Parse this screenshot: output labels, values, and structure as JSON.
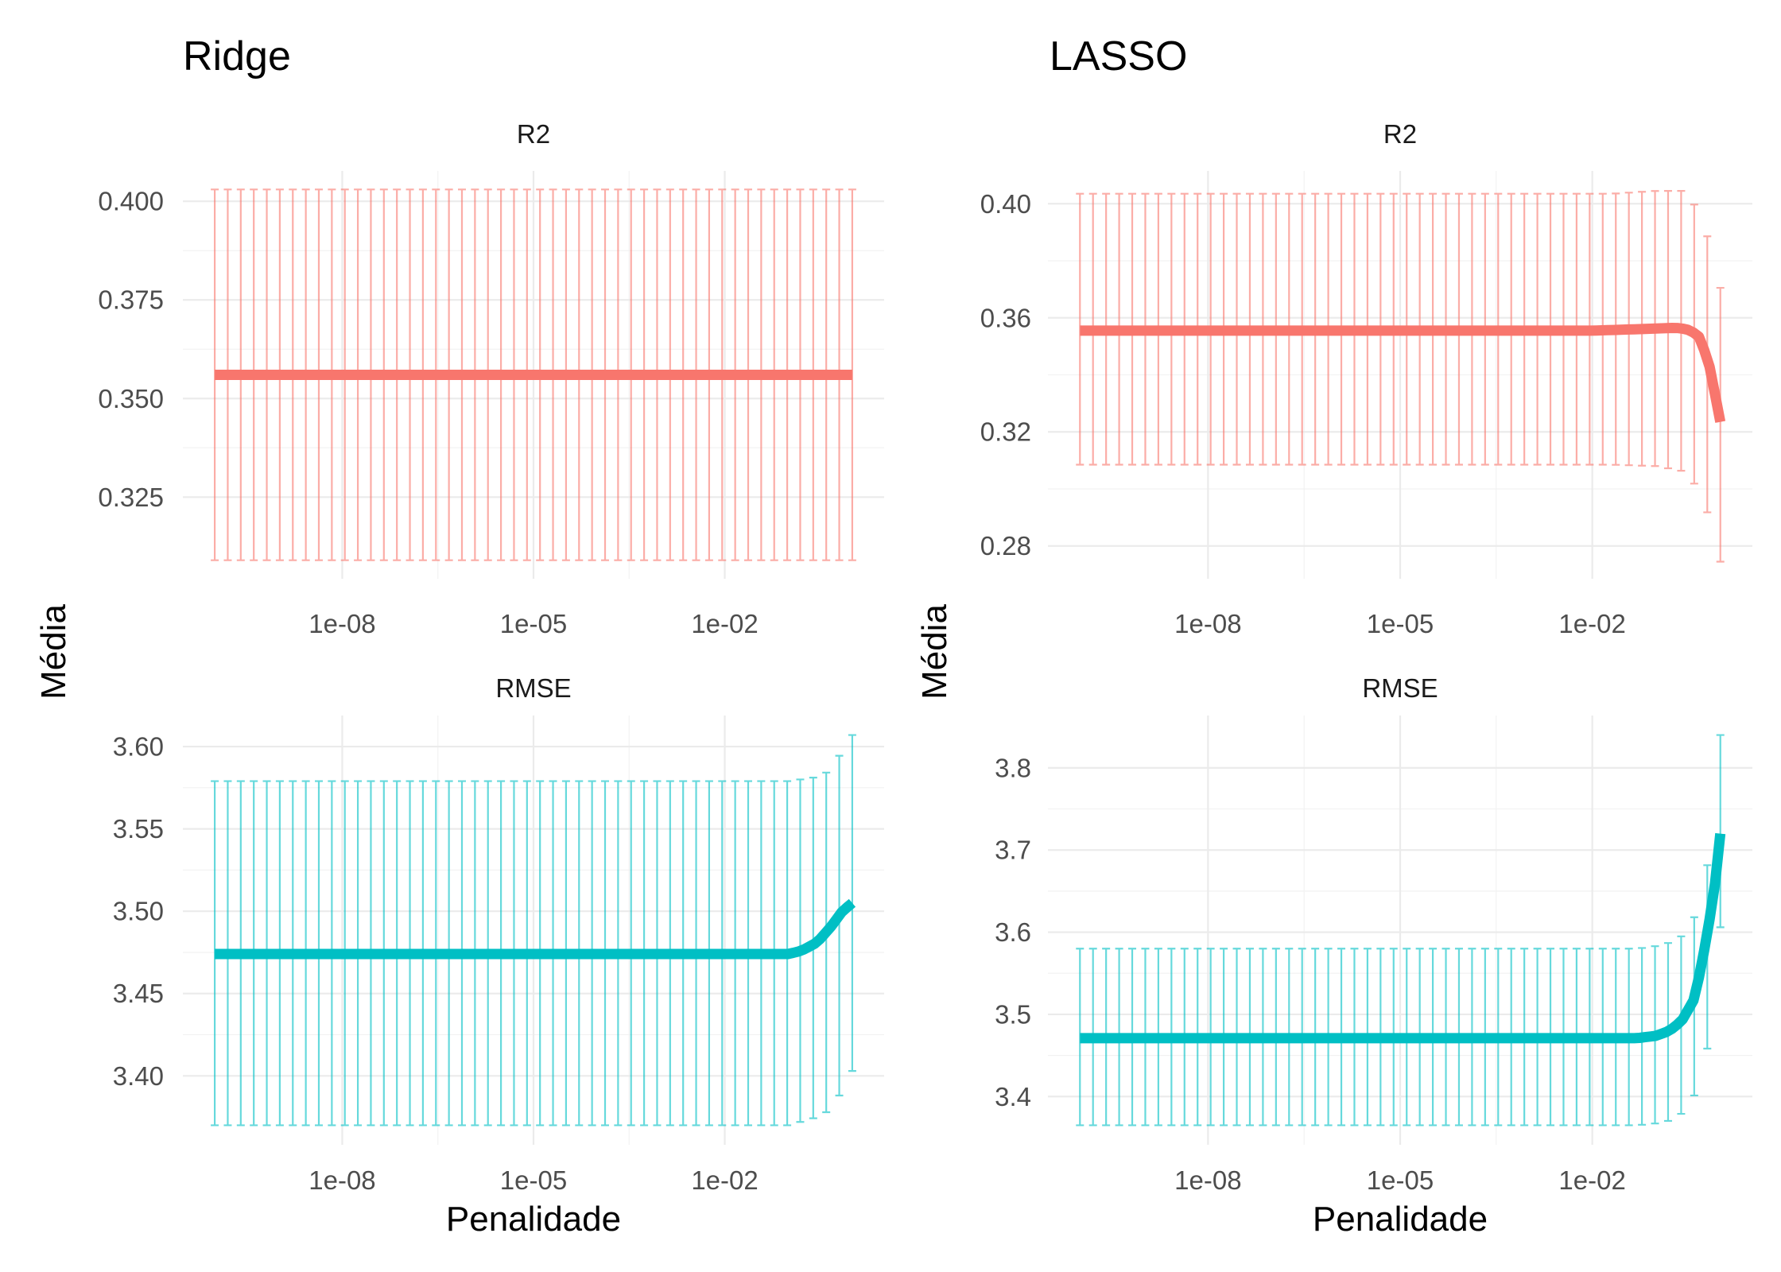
{
  "chart_data": [
    {
      "type": "line",
      "title": "Ridge",
      "facet": "R2",
      "xlabel": "",
      "ylabel": "Média",
      "x_scale": "log10",
      "xlim": [
        1e-10,
        1
      ],
      "x_ticks": [
        "1e-08",
        "1e-05",
        "1e-02"
      ],
      "ylim": [
        0.309,
        0.403
      ],
      "y_ticks": [
        "0.325",
        "0.350",
        "0.375",
        "0.400"
      ],
      "color": "#F8766D",
      "series": [
        {
          "points": [
            [
              1e-10,
              0.356
            ],
            [
              1e-05,
              0.356
            ],
            [
              1,
              0.356
            ]
          ],
          "error_low": 0.309,
          "error_high": 0.403
        }
      ],
      "grid": true
    },
    {
      "type": "line",
      "title": "Ridge",
      "facet": "RMSE",
      "xlabel": "Penalidade",
      "ylabel": "Média",
      "x_scale": "log10",
      "xlim": [
        1e-10,
        1
      ],
      "x_ticks": [
        "1e-08",
        "1e-05",
        "1e-02"
      ],
      "ylim": [
        3.37,
        3.607
      ],
      "y_ticks": [
        "3.40",
        "3.45",
        "3.50",
        "3.55",
        "3.60"
      ],
      "color": "#00BFC4",
      "series": [
        {
          "points": [
            [
              1e-10,
              3.474
            ],
            [
              0.1,
              3.474
            ],
            [
              0.16,
              3.476
            ],
            [
              0.28,
              3.481
            ],
            [
              0.45,
              3.49
            ],
            [
              0.7,
              3.5
            ],
            [
              1,
              3.505
            ]
          ],
          "error_low_by_x": [
            [
              1e-10,
              3.37
            ],
            [
              0.1,
              3.37
            ],
            [
              0.35,
              3.376
            ],
            [
              0.55,
              3.384
            ],
            [
              1,
              3.403
            ]
          ],
          "error_high_by_x": [
            [
              1e-10,
              3.579
            ],
            [
              0.1,
              3.579
            ],
            [
              0.35,
              3.582
            ],
            [
              0.55,
              3.591
            ],
            [
              1,
              3.607
            ]
          ]
        }
      ],
      "grid": true
    },
    {
      "type": "line",
      "title": "LASSO",
      "facet": "R2",
      "xlabel": "",
      "ylabel": "Média",
      "x_scale": "log10",
      "xlim": [
        1e-10,
        1
      ],
      "x_ticks": [
        "1e-08",
        "1e-05",
        "1e-02"
      ],
      "ylim": [
        0.275,
        0.405
      ],
      "y_ticks": [
        "0.28",
        "0.32",
        "0.36",
        "0.40"
      ],
      "color": "#F8766D",
      "series": [
        {
          "points": [
            [
              1e-10,
              0.3555
            ],
            [
              0.01,
              0.3555
            ],
            [
              0.05,
              0.356
            ],
            [
              0.2,
              0.3565
            ],
            [
              0.3,
              0.356
            ],
            [
              0.45,
              0.354
            ],
            [
              0.65,
              0.345
            ],
            [
              1,
              0.3235
            ]
          ],
          "error_low_by_x": [
            [
              1e-10,
              0.3085
            ],
            [
              0.02,
              0.3085
            ],
            [
              0.1,
              0.308
            ],
            [
              0.3,
              0.306
            ],
            [
              0.55,
              0.2965
            ],
            [
              1,
              0.2745
            ]
          ],
          "error_high_by_x": [
            [
              1e-10,
              0.4035
            ],
            [
              0.02,
              0.4035
            ],
            [
              0.1,
              0.4045
            ],
            [
              0.3,
              0.4045
            ],
            [
              0.55,
              0.3935
            ],
            [
              1,
              0.3705
            ]
          ]
        }
      ],
      "grid": true
    },
    {
      "type": "line",
      "title": "LASSO",
      "facet": "RMSE",
      "xlabel": "Penalidade",
      "ylabel": "Média",
      "x_scale": "log10",
      "xlim": [
        1e-10,
        1
      ],
      "x_ticks": [
        "1e-08",
        "1e-05",
        "1e-02"
      ],
      "ylim": [
        3.365,
        3.84
      ],
      "y_ticks": [
        "3.4",
        "3.5",
        "3.6",
        "3.7",
        "3.8"
      ],
      "color": "#00BFC4",
      "series": [
        {
          "points": [
            [
              1e-10,
              3.471
            ],
            [
              0.05,
              3.471
            ],
            [
              0.1,
              3.474
            ],
            [
              0.16,
              3.48
            ],
            [
              0.25,
              3.492
            ],
            [
              0.4,
              3.52
            ],
            [
              0.6,
              3.59
            ],
            [
              0.8,
              3.65
            ],
            [
              1,
              3.72
            ]
          ],
          "error_low_by_x": [
            [
              1e-10,
              3.365
            ],
            [
              0.05,
              3.365
            ],
            [
              0.12,
              3.368
            ],
            [
              0.2,
              3.373
            ],
            [
              0.3,
              3.385
            ],
            [
              0.45,
              3.41
            ],
            [
              0.7,
              3.475
            ],
            [
              1,
              3.606
            ]
          ],
          "error_high_by_x": [
            [
              1e-10,
              3.58
            ],
            [
              0.05,
              3.58
            ],
            [
              0.12,
              3.584
            ],
            [
              0.2,
              3.59
            ],
            [
              0.3,
              3.6
            ],
            [
              0.45,
              3.628
            ],
            [
              0.7,
              3.7
            ],
            [
              1,
              3.84
            ]
          ]
        }
      ],
      "grid": true
    }
  ]
}
